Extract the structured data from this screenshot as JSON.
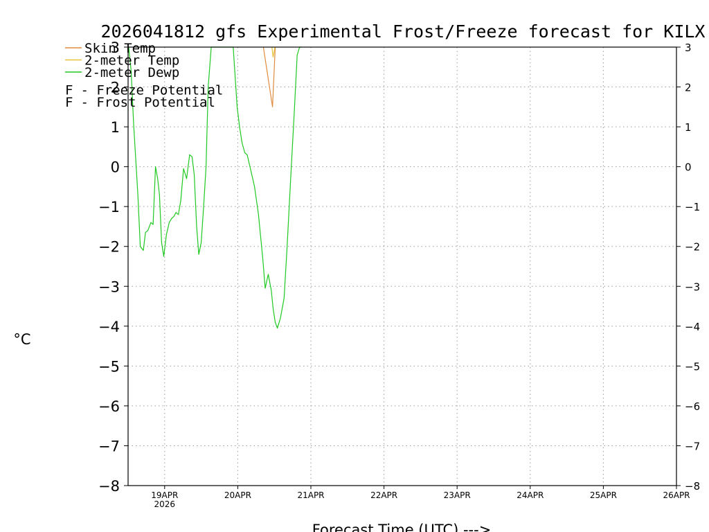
{
  "chart_data": {
    "type": "line",
    "title": "2026041812 gfs Experimental Frost/Freeze forecast for KILX",
    "xlabel": "Forecast Time (UTC) --->",
    "ylabel": "°C",
    "ylim": [
      -8,
      3
    ],
    "yticks": [
      3,
      2,
      1,
      0,
      -1,
      -2,
      -3,
      -4,
      -5,
      -6,
      -7,
      -8
    ],
    "ytick_labels": [
      "3",
      "2",
      "1",
      "0",
      "−1",
      "−2",
      "−3",
      "−4",
      "−5",
      "−6",
      "−7",
      "−8"
    ],
    "xlim_hours": [
      0,
      180
    ],
    "xticks": [
      {
        "label": "19APR",
        "sublabel": "2026",
        "hour": 12
      },
      {
        "label": "20APR",
        "sublabel": "",
        "hour": 36
      },
      {
        "label": "21APR",
        "sublabel": "",
        "hour": 60
      },
      {
        "label": "22APR",
        "sublabel": "",
        "hour": 84
      },
      {
        "label": "23APR",
        "sublabel": "",
        "hour": 108
      },
      {
        "label": "24APR",
        "sublabel": "",
        "hour": 132
      },
      {
        "label": "25APR",
        "sublabel": "",
        "hour": 156
      },
      {
        "label": "26APR",
        "sublabel": "",
        "hour": 180
      }
    ],
    "grid": true,
    "legend_position": "top-left",
    "legend": [
      {
        "label": "Skin Temp",
        "color": "#e08a3c",
        "type": "line"
      },
      {
        "label": "2-meter Temp",
        "color": "#e6c23c",
        "type": "line"
      },
      {
        "label": "2-meter Dewp",
        "color": "#1ec81e",
        "type": "line"
      },
      {
        "letter": "F",
        "label": " - Freeze Potential",
        "color": "#d23cb4",
        "type": "text"
      },
      {
        "letter": "F",
        "label": " - Frost Potential",
        "color": "#5a5ae6",
        "type": "text"
      }
    ],
    "series": [
      {
        "name": "Skin Temp",
        "color": "#e08a3c",
        "x": [
          44.4,
          47.4,
          48.3
        ],
        "y": [
          3.0,
          1.5,
          3.0
        ]
      },
      {
        "name": "2-meter Temp",
        "color": "#e6c23c",
        "x": [
          47.2,
          47.6,
          48.2
        ],
        "y": [
          3.0,
          2.75,
          3.0
        ]
      },
      {
        "name": "2-meter Dewp",
        "color": "#1ec81e",
        "x": [
          0.2,
          1.0,
          1.8,
          2.5,
          3.2,
          4.0,
          5.0,
          5.7,
          6.5,
          7.5,
          8.2,
          9.0,
          9.7,
          10.3,
          11.0,
          11.7,
          12.6,
          13.5,
          14.3,
          15.0,
          15.7,
          16.5,
          17.3,
          18.2,
          19.2,
          20.2,
          21.0,
          21.7,
          22.5,
          23.2,
          24.0,
          24.8,
          25.6,
          26.3,
          27.3,
          28.0,
          28.7,
          29.5,
          30.2,
          30.9,
          31.7,
          32.5,
          34.5,
          35.8,
          36.6,
          37.4,
          38.3,
          39.1,
          40.0,
          41.5,
          42.8,
          44.2,
          45.0,
          46.0,
          47.0,
          47.6,
          48.3,
          49.0,
          50.0,
          51.2,
          52.2,
          53.3,
          54.5,
          55.5,
          56.3,
          57.0
        ],
        "y": [
          3.0,
          2.4,
          1.1,
          0.2,
          -0.7,
          -2.0,
          -2.1,
          -1.65,
          -1.6,
          -1.4,
          -1.45,
          0.0,
          -0.3,
          -0.7,
          -1.9,
          -2.25,
          -1.7,
          -1.4,
          -1.3,
          -1.25,
          -1.15,
          -1.2,
          -0.85,
          -0.05,
          -0.3,
          0.3,
          0.25,
          -0.2,
          -1.5,
          -2.2,
          -1.9,
          -1.0,
          0.0,
          2.0,
          3.0,
          3.0,
          3.0,
          3.0,
          3.0,
          3.0,
          3.0,
          3.0,
          3.0,
          1.5,
          1.0,
          0.6,
          0.35,
          0.3,
          0.0,
          -0.5,
          -1.2,
          -2.3,
          -3.05,
          -2.7,
          -3.1,
          -3.55,
          -3.9,
          -4.05,
          -3.8,
          -3.3,
          -2.0,
          -0.4,
          1.3,
          2.8,
          3.0,
          3.0
        ]
      }
    ]
  }
}
